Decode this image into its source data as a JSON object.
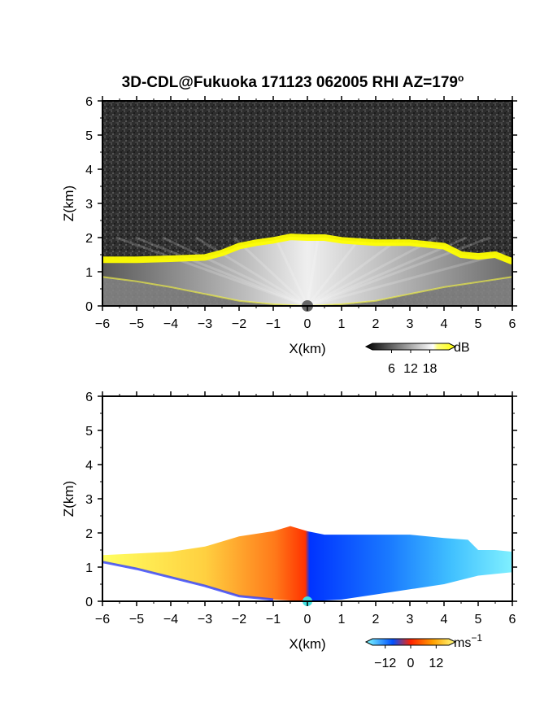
{
  "title": "3D-CDL@Fukuoka 171123 062005 RHI AZ=179",
  "title_sup": "o",
  "chart_data": [
    {
      "type": "heatmap",
      "name": "snr-panel",
      "xlabel": "X(km)",
      "ylabel": "Z(km)",
      "xlim": [
        -6,
        6
      ],
      "ylim": [
        0,
        6
      ],
      "xticks": [
        "-6",
        "-5",
        "-4",
        "-3",
        "-2",
        "-1",
        "0",
        "1",
        "2",
        "3",
        "4",
        "5",
        "6"
      ],
      "yticks": [
        "0",
        "1",
        "2",
        "3",
        "4",
        "5",
        "6"
      ],
      "colorbar": {
        "unit": "dB",
        "ticks": [
          "6",
          "12",
          "18"
        ],
        "range": [
          0,
          24
        ]
      },
      "top_profile": [
        [
          -6,
          1.35
        ],
        [
          -5,
          1.35
        ],
        [
          -4,
          1.38
        ],
        [
          -3,
          1.42
        ],
        [
          -2.5,
          1.55
        ],
        [
          -2,
          1.75
        ],
        [
          -1.5,
          1.85
        ],
        [
          -1,
          1.92
        ],
        [
          -0.5,
          2.02
        ],
        [
          0,
          2.0
        ],
        [
          0.5,
          2.0
        ],
        [
          1,
          1.92
        ],
        [
          2,
          1.85
        ],
        [
          3,
          1.85
        ],
        [
          4,
          1.75
        ],
        [
          4.5,
          1.5
        ],
        [
          5,
          1.45
        ],
        [
          5.5,
          1.5
        ],
        [
          6,
          1.3
        ]
      ],
      "bottom_profile": [
        [
          -6,
          0.85
        ],
        [
          -5,
          0.72
        ],
        [
          -4,
          0.55
        ],
        [
          -3,
          0.35
        ],
        [
          -2,
          0.15
        ],
        [
          -1,
          0.05
        ],
        [
          0,
          0
        ],
        [
          1,
          0.05
        ],
        [
          2,
          0.15
        ],
        [
          3,
          0.35
        ],
        [
          4,
          0.55
        ],
        [
          5,
          0.7
        ],
        [
          6,
          0.85
        ]
      ],
      "colors": {
        "background_noise": "#303030",
        "echo": "#d8d8d8",
        "edge": "#ffff00"
      }
    },
    {
      "type": "heatmap",
      "name": "doppler-panel",
      "xlabel": "X(km)",
      "ylabel": "Z(km)",
      "xlim": [
        -6,
        6
      ],
      "ylim": [
        0,
        6
      ],
      "xticks": [
        "-6",
        "-5",
        "-4",
        "-3",
        "-2",
        "-1",
        "0",
        "1",
        "2",
        "3",
        "4",
        "5",
        "6"
      ],
      "yticks": [
        "0",
        "1",
        "2",
        "3",
        "4",
        "5",
        "6"
      ],
      "colorbar": {
        "unit": "ms",
        "unit_sup": "−1",
        "ticks": [
          "−12",
          "0",
          "12"
        ],
        "range": [
          -18,
          18
        ]
      },
      "top_profile": [
        [
          -6,
          1.35
        ],
        [
          -5,
          1.4
        ],
        [
          -4,
          1.45
        ],
        [
          -3,
          1.6
        ],
        [
          -2,
          1.9
        ],
        [
          -1,
          2.05
        ],
        [
          -0.5,
          2.2
        ],
        [
          0,
          2.05
        ],
        [
          0.5,
          1.95
        ],
        [
          1,
          1.95
        ],
        [
          2,
          1.95
        ],
        [
          3,
          1.95
        ],
        [
          4,
          1.85
        ],
        [
          4.7,
          1.8
        ],
        [
          5,
          1.5
        ],
        [
          5.5,
          1.5
        ],
        [
          6,
          1.45
        ]
      ],
      "bottom_profile": [
        [
          -6,
          1.15
        ],
        [
          -5,
          0.95
        ],
        [
          -4,
          0.7
        ],
        [
          -3,
          0.45
        ],
        [
          -2,
          0.15
        ],
        [
          -1,
          0.05
        ],
        [
          0,
          0
        ],
        [
          1,
          0.05
        ],
        [
          2,
          0.2
        ],
        [
          3,
          0.35
        ],
        [
          4,
          0.5
        ],
        [
          5,
          0.75
        ],
        [
          6,
          0.85
        ]
      ],
      "colors": {
        "negative": "#0050ff",
        "zero": "#ff4400",
        "positive": "#ffff40"
      }
    }
  ]
}
